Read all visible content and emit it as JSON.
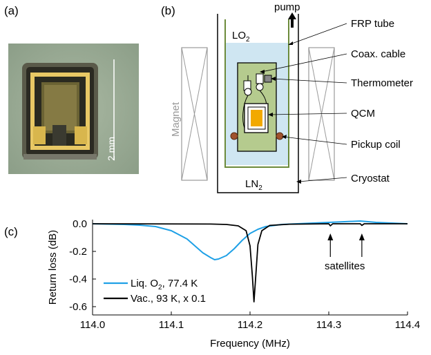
{
  "panels": {
    "a": "(a)",
    "b": "(b)",
    "c": "(c)"
  },
  "photo": {
    "scale_bar": "2 mm"
  },
  "diagram": {
    "pump": "pump",
    "lo2": "LO",
    "lo2_sub": "2",
    "ln2": "LN",
    "ln2_sub": "2",
    "magnet": "Magnet",
    "callouts": [
      "FRP tube",
      "Coax. cable",
      "Thermometer",
      "QCM",
      "Pickup coil",
      "Cryostat"
    ]
  },
  "chart_data": {
    "type": "line",
    "xlabel": "Frequency (MHz)",
    "ylabel": "Return loss (dB)",
    "xlim": [
      114.0,
      114.4
    ],
    "ylim": [
      -0.66,
      0.03
    ],
    "xticks": [
      "114.0",
      "114.1",
      "114.2",
      "114.3",
      "114.4"
    ],
    "yticks": [
      "0.0",
      "-0.2",
      "-0.4",
      "-0.6"
    ],
    "annotation": "satellites",
    "satellite_positions": [
      114.302,
      114.342
    ],
    "legend": [
      {
        "label": "Liq. O",
        "sub": "2",
        "suffix": ", 77.4 K",
        "color": "#1ea0e6"
      },
      {
        "label": "Vac., 93 K, x 0.1",
        "color": "#000000"
      }
    ],
    "series": [
      {
        "name": "Liq. O2, 77.4 K",
        "color": "#1ea0e6",
        "x": [
          114.0,
          114.04,
          114.06,
          114.08,
          114.1,
          114.12,
          114.13,
          114.14,
          114.15,
          114.155,
          114.16,
          114.17,
          114.18,
          114.19,
          114.2,
          114.21,
          114.22,
          114.24,
          114.26,
          114.28,
          114.3,
          114.32,
          114.34,
          114.36,
          114.38,
          114.4
        ],
        "y": [
          0.0,
          -0.005,
          -0.01,
          -0.02,
          -0.05,
          -0.11,
          -0.16,
          -0.21,
          -0.245,
          -0.26,
          -0.255,
          -0.23,
          -0.18,
          -0.12,
          -0.07,
          -0.04,
          -0.02,
          -0.005,
          0.0,
          0.005,
          0.01,
          0.015,
          0.02,
          0.01,
          0.005,
          0.0
        ]
      },
      {
        "name": "Vac., 93 K, x 0.1",
        "color": "#000000",
        "x": [
          114.0,
          114.15,
          114.17,
          114.185,
          114.195,
          114.2,
          114.203,
          114.205,
          114.207,
          114.21,
          114.215,
          114.225,
          114.25,
          114.3,
          114.302,
          114.305,
          114.34,
          114.342,
          114.345,
          114.4
        ],
        "y": [
          0.0,
          -0.002,
          -0.005,
          -0.015,
          -0.05,
          -0.16,
          -0.38,
          -0.565,
          -0.4,
          -0.15,
          -0.05,
          -0.012,
          -0.003,
          0.0,
          -0.015,
          0.0,
          0.0,
          -0.012,
          0.0,
          0.0
        ]
      }
    ]
  },
  "colors": {
    "liquid_o2": "#cfe6f2",
    "board": "#b5cb8e",
    "frp": "#6b8a3a",
    "coil": "#a0522d",
    "qcm": "#f2a900"
  }
}
